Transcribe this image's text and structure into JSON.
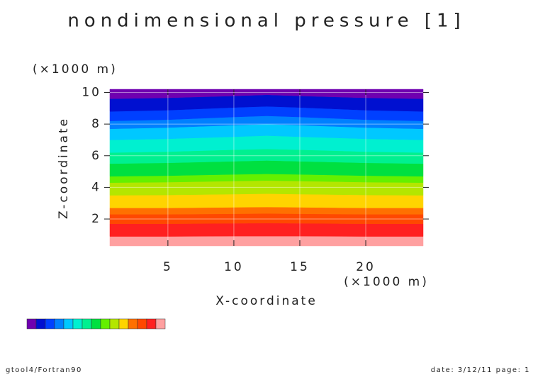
{
  "chart_data": {
    "type": "contourf",
    "title": "nondimensional pressure [1]",
    "x_label": "X-coordinate",
    "x_unit": "(×1000 m)",
    "y_label": "Z-coordinate",
    "y_unit": "(×1000 m)",
    "x": [
      0.6,
      5,
      10,
      12.5,
      15,
      20,
      24.35
    ],
    "boundaries": [
      [
        0.9,
        0.9,
        0.92,
        0.92,
        0.92,
        0.9,
        0.9
      ],
      [
        1.7,
        1.7,
        1.73,
        1.74,
        1.73,
        1.7,
        1.7
      ],
      [
        2.3,
        2.3,
        2.33,
        2.35,
        2.33,
        2.3,
        2.3
      ],
      [
        2.7,
        2.7,
        2.74,
        2.76,
        2.74,
        2.7,
        2.7
      ],
      [
        3.5,
        3.52,
        3.57,
        3.6,
        3.57,
        3.52,
        3.5
      ],
      [
        4.3,
        4.33,
        4.4,
        4.43,
        4.4,
        4.33,
        4.3
      ],
      [
        4.7,
        4.74,
        4.82,
        4.85,
        4.82,
        4.74,
        4.7
      ],
      [
        5.5,
        5.55,
        5.65,
        5.7,
        5.65,
        5.55,
        5.5
      ],
      [
        6.2,
        6.26,
        6.38,
        6.43,
        6.38,
        6.26,
        6.2
      ],
      [
        7.0,
        7.07,
        7.2,
        7.27,
        7.2,
        7.07,
        7.0
      ],
      [
        7.7,
        7.78,
        7.93,
        8.0,
        7.93,
        7.78,
        7.7
      ],
      [
        8.2,
        8.28,
        8.45,
        8.52,
        8.45,
        8.28,
        8.2
      ],
      [
        8.8,
        8.88,
        9.05,
        9.12,
        9.05,
        8.88,
        8.8
      ],
      [
        9.6,
        9.66,
        9.78,
        9.85,
        9.78,
        9.66,
        9.6
      ]
    ],
    "colors": [
      "#ffa0a0",
      "#ff2020",
      "#ff4800",
      "#ff7000",
      "#ffd400",
      "#b4e600",
      "#64f000",
      "#00e040",
      "#00f090",
      "#00f0d0",
      "#00c8ff",
      "#0080ff",
      "#0040ff",
      "#0010d0",
      "#7000b0"
    ],
    "xlim": [
      0.6,
      24.35
    ],
    "ylim": [
      0.3,
      10.2
    ],
    "xticks": [
      5,
      10,
      15,
      20
    ],
    "yticks": [
      2,
      4,
      6,
      8,
      10
    ],
    "grid": true
  },
  "footer": {
    "left": "gtool4/Fortran90",
    "right": "date: 3/12/11 page: 1"
  }
}
